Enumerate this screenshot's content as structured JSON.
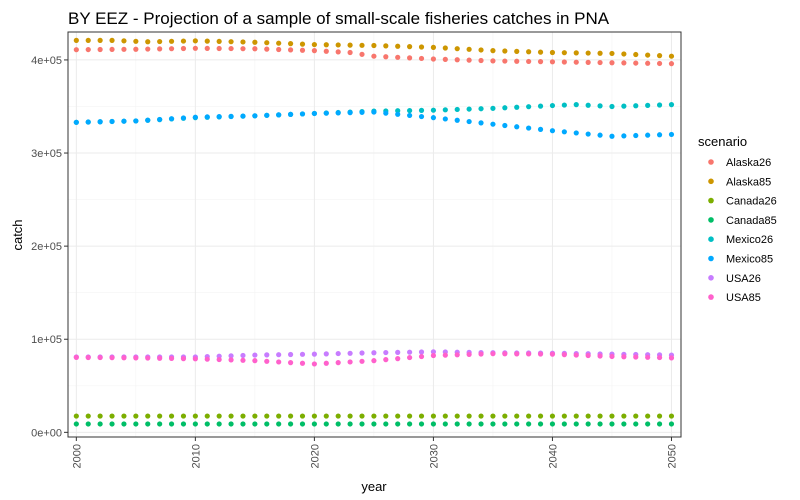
{
  "chart_data": {
    "type": "scatter",
    "title": "BY EEZ - Projection of a sample of small-scale fisheries catches in PNA",
    "xlabel": "year",
    "ylabel": "catch",
    "xlim": [
      1999.3,
      2050.8
    ],
    "ylim": [
      -5000,
      430000
    ],
    "x_ticks": [
      2000,
      2010,
      2020,
      2030,
      2040,
      2050
    ],
    "x_tick_labels": [
      "2000",
      "2010",
      "2020",
      "2030",
      "2040",
      "2050"
    ],
    "y_ticks": [
      0,
      100000,
      200000,
      300000,
      400000
    ],
    "y_tick_labels": [
      "0e+00",
      "1e+05",
      "2e+05",
      "3e+05",
      "4e+05"
    ],
    "grid": true,
    "legend_title": "scenario",
    "legend_position": "right",
    "x_range": [
      2000,
      2050
    ],
    "series": [
      {
        "name": "Alaska26",
        "color": "#F8766D",
        "anchors": [
          [
            2000,
            411000
          ],
          [
            2005,
            411500
          ],
          [
            2010,
            412500
          ],
          [
            2015,
            412000
          ],
          [
            2020,
            410000
          ],
          [
            2023,
            408000
          ],
          [
            2025,
            404000
          ],
          [
            2030,
            401000
          ],
          [
            2035,
            399000
          ],
          [
            2040,
            398000
          ],
          [
            2045,
            397000
          ],
          [
            2050,
            396000
          ]
        ]
      },
      {
        "name": "Alaska85",
        "color": "#CD9600",
        "anchors": [
          [
            2000,
            421000
          ],
          [
            2003,
            421000
          ],
          [
            2006,
            419500
          ],
          [
            2010,
            420500
          ],
          [
            2015,
            419000
          ],
          [
            2020,
            416500
          ],
          [
            2025,
            415500
          ],
          [
            2030,
            413500
          ],
          [
            2035,
            410000
          ],
          [
            2040,
            408000
          ],
          [
            2045,
            407000
          ],
          [
            2050,
            404000
          ]
        ]
      },
      {
        "name": "Canada26",
        "color": "#7CAE00",
        "anchors": [
          [
            2000,
            17500
          ],
          [
            2050,
            17500
          ]
        ]
      },
      {
        "name": "Canada85",
        "color": "#00BE67",
        "anchors": [
          [
            2000,
            9000
          ],
          [
            2050,
            9000
          ]
        ]
      },
      {
        "name": "Mexico26",
        "color": "#00BFC4",
        "anchors": [
          [
            2000,
            333000
          ],
          [
            2005,
            334500
          ],
          [
            2010,
            338000
          ],
          [
            2015,
            340000
          ],
          [
            2020,
            342500
          ],
          [
            2025,
            345000
          ],
          [
            2030,
            346000
          ],
          [
            2035,
            348000
          ],
          [
            2040,
            351000
          ],
          [
            2042,
            352000
          ],
          [
            2045,
            350000
          ],
          [
            2050,
            352000
          ]
        ]
      },
      {
        "name": "Mexico85",
        "color": "#00A9FF",
        "anchors": [
          [
            2000,
            333000
          ],
          [
            2005,
            334500
          ],
          [
            2010,
            338500
          ],
          [
            2015,
            340000
          ],
          [
            2020,
            342500
          ],
          [
            2025,
            344000
          ],
          [
            2030,
            338000
          ],
          [
            2035,
            331000
          ],
          [
            2040,
            324000
          ],
          [
            2045,
            318000
          ],
          [
            2050,
            320000
          ]
        ]
      },
      {
        "name": "USA26",
        "color": "#C77CFF",
        "anchors": [
          [
            2000,
            81000
          ],
          [
            2005,
            81000
          ],
          [
            2010,
            81000
          ],
          [
            2015,
            83000
          ],
          [
            2020,
            84000
          ],
          [
            2025,
            85500
          ],
          [
            2030,
            86500
          ],
          [
            2035,
            85500
          ],
          [
            2040,
            85000
          ],
          [
            2045,
            84000
          ],
          [
            2050,
            83000
          ]
        ]
      },
      {
        "name": "USA85",
        "color": "#FF61CC",
        "anchors": [
          [
            2000,
            80500
          ],
          [
            2005,
            80000
          ],
          [
            2010,
            79000
          ],
          [
            2015,
            77000
          ],
          [
            2020,
            73500
          ],
          [
            2025,
            77000
          ],
          [
            2030,
            82500
          ],
          [
            2035,
            84500
          ],
          [
            2040,
            84000
          ],
          [
            2045,
            81500
          ],
          [
            2050,
            80000
          ]
        ]
      }
    ]
  }
}
